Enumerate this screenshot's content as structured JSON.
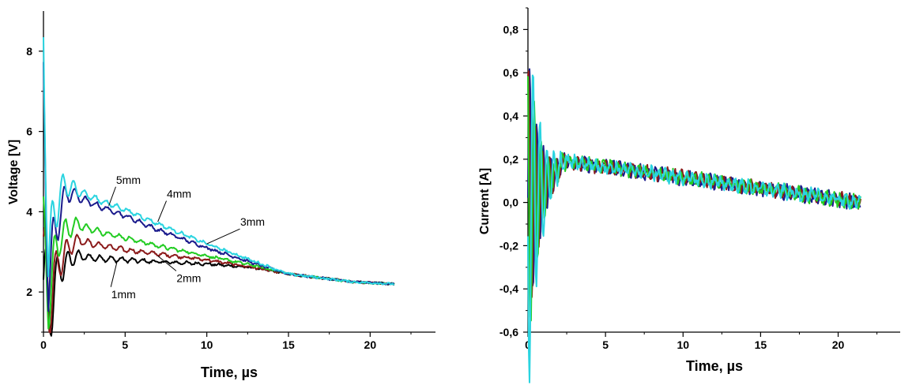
{
  "chart_data": [
    {
      "type": "line",
      "xlabel": "Time, µs",
      "ylabel": "Voltage [V]",
      "xlim": [
        0,
        24
      ],
      "ylim": [
        1.0,
        9.0
      ],
      "xticks": [
        "0",
        "5",
        "10",
        "15",
        "20"
      ],
      "yticks": [
        "2",
        "4",
        "6",
        "8"
      ],
      "grid": false,
      "series": [
        {
          "name": "1mm",
          "color": "#000000",
          "x": [
            0,
            0.3,
            1,
            2,
            3,
            5,
            7,
            10,
            13,
            15,
            17,
            19,
            21.5
          ],
          "y": [
            2.3,
            1.4,
            2.6,
            2.9,
            2.85,
            2.8,
            2.75,
            2.7,
            2.6,
            2.45,
            2.35,
            2.25,
            2.2
          ]
        },
        {
          "name": "2mm",
          "color": "#8b1a1a",
          "x": [
            0,
            0.3,
            1,
            2,
            3,
            5,
            7,
            10,
            13,
            15,
            17,
            19,
            21.5
          ],
          "y": [
            2.5,
            1.7,
            2.8,
            3.3,
            3.2,
            3.05,
            2.95,
            2.8,
            2.6,
            2.45,
            2.35,
            2.25,
            2.2
          ]
        },
        {
          "name": "3mm",
          "color": "#22cc22",
          "x": [
            0,
            0.3,
            1,
            2,
            3,
            5,
            7,
            10,
            13,
            15,
            17,
            19,
            21.5
          ],
          "y": [
            3.0,
            2.0,
            3.4,
            3.7,
            3.55,
            3.35,
            3.15,
            2.9,
            2.65,
            2.45,
            2.35,
            2.25,
            2.2
          ]
        },
        {
          "name": "4mm",
          "color": "#1a1a8c",
          "x": [
            0,
            0.3,
            1,
            1.5,
            3,
            5,
            7,
            10,
            13,
            15,
            17,
            19,
            21.5
          ],
          "y": [
            6.5,
            2.5,
            4.0,
            4.5,
            4.2,
            3.9,
            3.55,
            3.1,
            2.7,
            2.45,
            2.35,
            2.25,
            2.2
          ]
        },
        {
          "name": "5mm",
          "color": "#2ad4e0",
          "x": [
            0,
            0.3,
            1,
            1.5,
            3,
            5,
            7,
            10,
            13,
            15,
            17,
            19,
            21.5
          ],
          "y": [
            7.9,
            3.0,
            4.5,
            4.65,
            4.35,
            4.05,
            3.7,
            3.2,
            2.75,
            2.45,
            2.35,
            2.25,
            2.2
          ]
        }
      ],
      "annotations": [
        {
          "text": "5mm",
          "x": 5.2,
          "y": 4.7,
          "tip_x": 4.0,
          "tip_y": 4.15
        },
        {
          "text": "4mm",
          "x": 8.3,
          "y": 4.35,
          "tip_x": 7.0,
          "tip_y": 3.75
        },
        {
          "text": "3mm",
          "x": 12.8,
          "y": 3.65,
          "tip_x": 10.0,
          "tip_y": 3.2
        },
        {
          "text": "2mm",
          "x": 8.9,
          "y": 2.25,
          "tip_x": 7.0,
          "tip_y": 2.9
        },
        {
          "text": "1mm",
          "x": 4.9,
          "y": 1.85,
          "tip_x": 4.5,
          "tip_y": 2.75
        }
      ]
    },
    {
      "type": "line",
      "xlabel": "Time, µs",
      "ylabel": "Current [A]",
      "xlim": [
        0,
        24
      ],
      "ylim": [
        -0.6,
        0.9
      ],
      "xticks": [
        "0",
        "5",
        "10",
        "15",
        "20"
      ],
      "yticks": [
        "-0,6",
        "-0,4",
        "-0,2",
        "0,0",
        "0,2",
        "0,4",
        "0,6",
        "0,8"
      ],
      "grid": false,
      "series": [
        {
          "color": "#1a1a8c",
          "x": [
            0,
            21.5
          ],
          "y": [
            0.5,
            0.0
          ]
        },
        {
          "color": "#8b1a1a",
          "x": [
            0,
            21.5
          ],
          "y": [
            0.45,
            0.0
          ]
        },
        {
          "color": "#22cc22",
          "x": [
            0,
            21.5
          ],
          "y": [
            0.55,
            0.0
          ]
        },
        {
          "color": "#2ad4e0",
          "x": [
            0,
            21.5
          ],
          "y": [
            0.75,
            0.0
          ]
        }
      ]
    }
  ]
}
